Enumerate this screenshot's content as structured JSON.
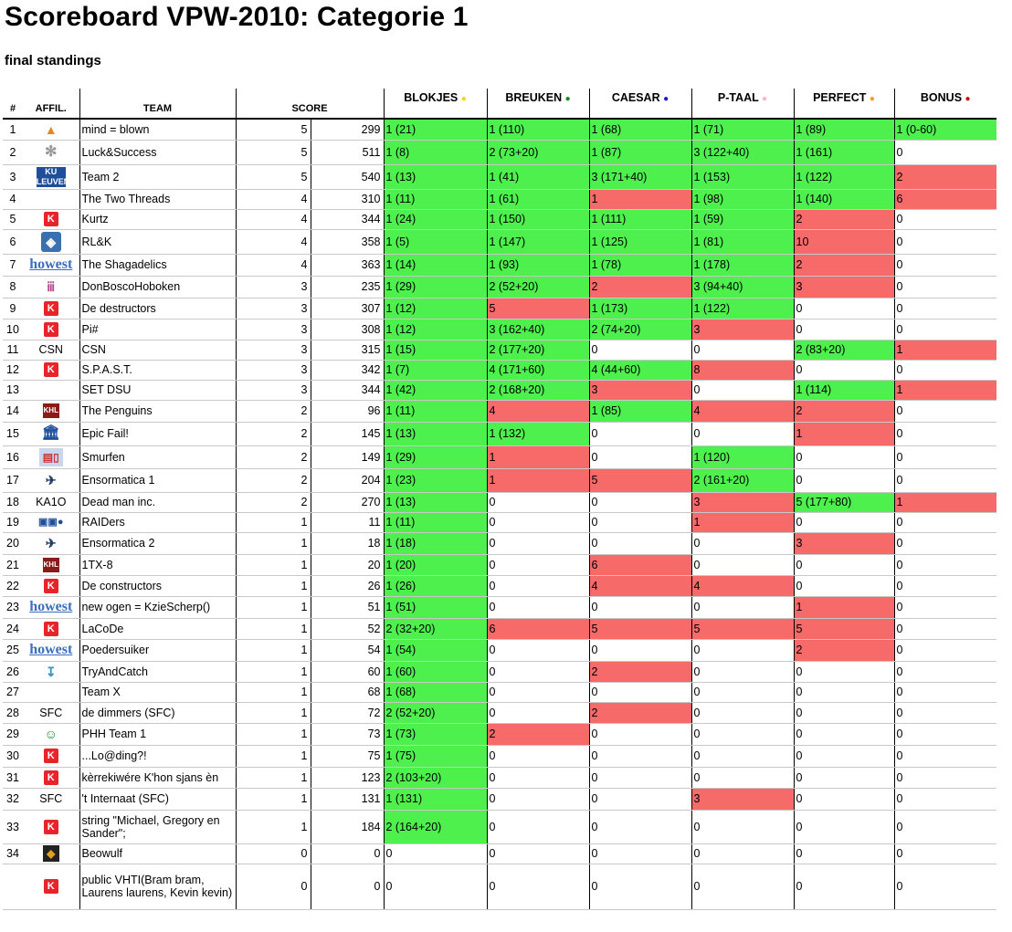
{
  "title": "Scoreboard VPW-2010: Categorie 1",
  "subtitle": "final standings",
  "headers": {
    "num": "#",
    "affil": "AFFIL.",
    "team": "TEAM",
    "score": "SCORE"
  },
  "problems": [
    {
      "label": "BLOKJES",
      "dot": "●",
      "dotColor": "#f0d800"
    },
    {
      "label": "BREUKEN",
      "dot": "●",
      "dotColor": "#1a8a1a"
    },
    {
      "label": "CAESAR",
      "dot": "●",
      "dotColor": "#1a1ad0"
    },
    {
      "label": "P-TAAL",
      "dot": "●",
      "dotColor": "#f4b8c8"
    },
    {
      "label": "PERFECT",
      "dot": "●",
      "dotColor": "#f0a020"
    },
    {
      "label": "BONUS",
      "dot": "●",
      "dotColor": "#d01010"
    }
  ],
  "colors": {
    "solved": "#4df04d",
    "failed": "#f66a6a"
  },
  "rows": [
    {
      "rank": "1",
      "affil_icon": "hat-icon",
      "affil": "",
      "team": "mind = blown",
      "solved": "5",
      "time": "299",
      "cells": [
        [
          "1 (21)",
          "g"
        ],
        [
          "1 (110)",
          "g"
        ],
        [
          "1 (68)",
          "g"
        ],
        [
          "1 (71)",
          "g"
        ],
        [
          "1 (89)",
          "g"
        ],
        [
          "1 (0-60)",
          "g"
        ]
      ]
    },
    {
      "rank": "2",
      "affil_icon": "gear-icon",
      "affil": "",
      "team": "Luck&Success",
      "solved": "5",
      "time": "511",
      "cells": [
        [
          "1 (8)",
          "g"
        ],
        [
          "2 (73+20)",
          "g"
        ],
        [
          "1 (87)",
          "g"
        ],
        [
          "3 (122+40)",
          "g"
        ],
        [
          "1 (161)",
          "g"
        ],
        [
          "0",
          ""
        ]
      ]
    },
    {
      "rank": "3",
      "affil_icon": "kuleuven-icon",
      "affil": "",
      "team": "Team 2",
      "solved": "5",
      "time": "540",
      "cells": [
        [
          "1 (13)",
          "g"
        ],
        [
          "1 (41)",
          "g"
        ],
        [
          "3 (171+40)",
          "g"
        ],
        [
          "1 (153)",
          "g"
        ],
        [
          "1 (122)",
          "g"
        ],
        [
          "2",
          "r"
        ]
      ]
    },
    {
      "rank": "4",
      "affil_icon": "",
      "affil": "",
      "team": "The Two Threads",
      "solved": "4",
      "time": "310",
      "cells": [
        [
          "1 (11)",
          "g"
        ],
        [
          "1 (61)",
          "g"
        ],
        [
          "1",
          "r"
        ],
        [
          "1 (98)",
          "g"
        ],
        [
          "1 (140)",
          "g"
        ],
        [
          "6",
          "r"
        ]
      ]
    },
    {
      "rank": "5",
      "affil_icon": "k-icon",
      "affil": "",
      "team": "Kurtz",
      "solved": "4",
      "time": "344",
      "cells": [
        [
          "1 (24)",
          "g"
        ],
        [
          "1 (150)",
          "g"
        ],
        [
          "1 (111)",
          "g"
        ],
        [
          "1 (59)",
          "g"
        ],
        [
          "2",
          "r"
        ],
        [
          "0",
          ""
        ]
      ]
    },
    {
      "rank": "6",
      "affil_icon": "hexa-icon",
      "affil": "",
      "team": "RL&K",
      "solved": "4",
      "time": "358",
      "cells": [
        [
          "1 (5)",
          "g"
        ],
        [
          "1 (147)",
          "g"
        ],
        [
          "1 (125)",
          "g"
        ],
        [
          "1 (81)",
          "g"
        ],
        [
          "10",
          "r"
        ],
        [
          "0",
          ""
        ]
      ]
    },
    {
      "rank": "7",
      "affil_icon": "howest-icon",
      "affil": "",
      "team": "The Shagadelics",
      "solved": "4",
      "time": "363",
      "cells": [
        [
          "1 (14)",
          "g"
        ],
        [
          "1 (93)",
          "g"
        ],
        [
          "1 (78)",
          "g"
        ],
        [
          "1 (178)",
          "g"
        ],
        [
          "2",
          "r"
        ],
        [
          "0",
          ""
        ]
      ]
    },
    {
      "rank": "8",
      "affil_icon": "donbosco-icon",
      "affil": "",
      "team": "DonBoscoHoboken",
      "solved": "3",
      "time": "235",
      "cells": [
        [
          "1 (29)",
          "g"
        ],
        [
          "2 (52+20)",
          "g"
        ],
        [
          "2",
          "r"
        ],
        [
          "3 (94+40)",
          "g"
        ],
        [
          "3",
          "r"
        ],
        [
          "0",
          ""
        ]
      ]
    },
    {
      "rank": "9",
      "affil_icon": "k-icon",
      "affil": "",
      "team": "De destructors",
      "solved": "3",
      "time": "307",
      "cells": [
        [
          "1 (12)",
          "g"
        ],
        [
          "5",
          "r"
        ],
        [
          "1 (173)",
          "g"
        ],
        [
          "1 (122)",
          "g"
        ],
        [
          "0",
          ""
        ],
        [
          "0",
          ""
        ]
      ]
    },
    {
      "rank": "10",
      "affil_icon": "k-icon",
      "affil": "",
      "team": "Pi#",
      "solved": "3",
      "time": "308",
      "cells": [
        [
          "1 (12)",
          "g"
        ],
        [
          "3 (162+40)",
          "g"
        ],
        [
          "2 (74+20)",
          "g"
        ],
        [
          "3",
          "r"
        ],
        [
          "0",
          ""
        ],
        [
          "0",
          ""
        ]
      ]
    },
    {
      "rank": "11",
      "affil_icon": "",
      "affil": "CSN",
      "team": "CSN",
      "solved": "3",
      "time": "315",
      "cells": [
        [
          "1 (15)",
          "g"
        ],
        [
          "2 (177+20)",
          "g"
        ],
        [
          "0",
          ""
        ],
        [
          "0",
          ""
        ],
        [
          "2 (83+20)",
          "g"
        ],
        [
          "1",
          "r"
        ]
      ]
    },
    {
      "rank": "12",
      "affil_icon": "k-icon",
      "affil": "",
      "team": "S.P.A.S.T.",
      "solved": "3",
      "time": "342",
      "cells": [
        [
          "1 (7)",
          "g"
        ],
        [
          "4 (171+60)",
          "g"
        ],
        [
          "4 (44+60)",
          "g"
        ],
        [
          "8",
          "r"
        ],
        [
          "0",
          ""
        ],
        [
          "0",
          ""
        ]
      ]
    },
    {
      "rank": "13",
      "affil_icon": "",
      "affil": "",
      "team": "SET DSU",
      "solved": "3",
      "time": "344",
      "cells": [
        [
          "1 (42)",
          "g"
        ],
        [
          "2 (168+20)",
          "g"
        ],
        [
          "3",
          "r"
        ],
        [
          "0",
          ""
        ],
        [
          "1 (114)",
          "g"
        ],
        [
          "1",
          "r"
        ]
      ]
    },
    {
      "rank": "14",
      "affil_icon": "khl-icon",
      "affil": "",
      "team": "The Penguins",
      "solved": "2",
      "time": "96",
      "cells": [
        [
          "1 (11)",
          "g"
        ],
        [
          "4",
          "r"
        ],
        [
          "1 (85)",
          "g"
        ],
        [
          "4",
          "r"
        ],
        [
          "2",
          "r"
        ],
        [
          "0",
          ""
        ]
      ]
    },
    {
      "rank": "15",
      "affil_icon": "bank-icon",
      "affil": "",
      "team": "Epic Fail!",
      "solved": "2",
      "time": "145",
      "cells": [
        [
          "1 (13)",
          "g"
        ],
        [
          "1 (132)",
          "g"
        ],
        [
          "0",
          ""
        ],
        [
          "0",
          ""
        ],
        [
          "1",
          "r"
        ],
        [
          "0",
          ""
        ]
      ]
    },
    {
      "rank": "16",
      "affil_icon": "smurf-icon",
      "affil": "",
      "team": "Smurfen",
      "solved": "2",
      "time": "149",
      "cells": [
        [
          "1 (29)",
          "g"
        ],
        [
          "1",
          "r"
        ],
        [
          "0",
          ""
        ],
        [
          "1 (120)",
          "g"
        ],
        [
          "0",
          ""
        ],
        [
          "0",
          ""
        ]
      ]
    },
    {
      "rank": "17",
      "affil_icon": "enso-icon",
      "affil": "",
      "team": "Ensormatica 1",
      "solved": "2",
      "time": "204",
      "cells": [
        [
          "1 (23)",
          "g"
        ],
        [
          "1",
          "r"
        ],
        [
          "5",
          "r"
        ],
        [
          "2 (161+20)",
          "g"
        ],
        [
          "0",
          ""
        ],
        [
          "0",
          ""
        ]
      ]
    },
    {
      "rank": "18",
      "affil_icon": "",
      "affil": "KA1O",
      "team": "Dead man inc.",
      "solved": "2",
      "time": "270",
      "cells": [
        [
          "1 (13)",
          "g"
        ],
        [
          "0",
          ""
        ],
        [
          "0",
          ""
        ],
        [
          "3",
          "r"
        ],
        [
          "5 (177+80)",
          "g"
        ],
        [
          "1",
          "r"
        ]
      ]
    },
    {
      "rank": "19",
      "affil_icon": "raid-icon",
      "affil": "",
      "team": "RAIDers",
      "solved": "1",
      "time": "11",
      "cells": [
        [
          "1 (11)",
          "g"
        ],
        [
          "0",
          ""
        ],
        [
          "0",
          ""
        ],
        [
          "1",
          "r"
        ],
        [
          "0",
          ""
        ],
        [
          "0",
          ""
        ]
      ]
    },
    {
      "rank": "20",
      "affil_icon": "enso-icon",
      "affil": "",
      "team": "Ensormatica 2",
      "solved": "1",
      "time": "18",
      "cells": [
        [
          "1 (18)",
          "g"
        ],
        [
          "0",
          ""
        ],
        [
          "0",
          ""
        ],
        [
          "0",
          ""
        ],
        [
          "3",
          "r"
        ],
        [
          "0",
          ""
        ]
      ]
    },
    {
      "rank": "21",
      "affil_icon": "khl-icon",
      "affil": "",
      "team": "1TX-8",
      "solved": "1",
      "time": "20",
      "cells": [
        [
          "1 (20)",
          "g"
        ],
        [
          "0",
          ""
        ],
        [
          "6",
          "r"
        ],
        [
          "0",
          ""
        ],
        [
          "0",
          ""
        ],
        [
          "0",
          ""
        ]
      ]
    },
    {
      "rank": "22",
      "affil_icon": "k-icon",
      "affil": "",
      "team": "De constructors",
      "solved": "1",
      "time": "26",
      "cells": [
        [
          "1 (26)",
          "g"
        ],
        [
          "0",
          ""
        ],
        [
          "4",
          "r"
        ],
        [
          "4",
          "r"
        ],
        [
          "0",
          ""
        ],
        [
          "0",
          ""
        ]
      ]
    },
    {
      "rank": "23",
      "affil_icon": "howest-icon",
      "affil": "",
      "team": "new ogen = KzieScherp()",
      "solved": "1",
      "time": "51",
      "cells": [
        [
          "1 (51)",
          "g"
        ],
        [
          "0",
          ""
        ],
        [
          "0",
          ""
        ],
        [
          "0",
          ""
        ],
        [
          "1",
          "r"
        ],
        [
          "0",
          ""
        ]
      ]
    },
    {
      "rank": "24",
      "affil_icon": "k-icon",
      "affil": "",
      "team": "LaCoDe",
      "solved": "1",
      "time": "52",
      "cells": [
        [
          "2 (32+20)",
          "g"
        ],
        [
          "6",
          "r"
        ],
        [
          "5",
          "r"
        ],
        [
          "5",
          "r"
        ],
        [
          "5",
          "r"
        ],
        [
          "0",
          ""
        ]
      ]
    },
    {
      "rank": "25",
      "affil_icon": "howest-icon",
      "affil": "",
      "team": "Poedersuiker",
      "solved": "1",
      "time": "54",
      "cells": [
        [
          "1 (54)",
          "g"
        ],
        [
          "0",
          ""
        ],
        [
          "0",
          ""
        ],
        [
          "0",
          ""
        ],
        [
          "2",
          "r"
        ],
        [
          "0",
          ""
        ]
      ]
    },
    {
      "rank": "26",
      "affil_icon": "catch-icon",
      "affil": "",
      "team": "TryAndCatch",
      "solved": "1",
      "time": "60",
      "cells": [
        [
          "1 (60)",
          "g"
        ],
        [
          "0",
          ""
        ],
        [
          "2",
          "r"
        ],
        [
          "0",
          ""
        ],
        [
          "0",
          ""
        ],
        [
          "0",
          ""
        ]
      ]
    },
    {
      "rank": "27",
      "affil_icon": "",
      "affil": "",
      "team": "Team X",
      "solved": "1",
      "time": "68",
      "cells": [
        [
          "1 (68)",
          "g"
        ],
        [
          "0",
          ""
        ],
        [
          "0",
          ""
        ],
        [
          "0",
          ""
        ],
        [
          "0",
          ""
        ],
        [
          "0",
          ""
        ]
      ]
    },
    {
      "rank": "28",
      "affil_icon": "",
      "affil": "SFC",
      "team": "de dimmers (SFC)",
      "solved": "1",
      "time": "72",
      "cells": [
        [
          "2 (52+20)",
          "g"
        ],
        [
          "0",
          ""
        ],
        [
          "2",
          "r"
        ],
        [
          "0",
          ""
        ],
        [
          "0",
          ""
        ],
        [
          "0",
          ""
        ]
      ]
    },
    {
      "rank": "29",
      "affil_icon": "phh-icon",
      "affil": "",
      "team": "PHH Team 1",
      "solved": "1",
      "time": "73",
      "cells": [
        [
          "1 (73)",
          "g"
        ],
        [
          "2",
          "r"
        ],
        [
          "0",
          ""
        ],
        [
          "0",
          ""
        ],
        [
          "0",
          ""
        ],
        [
          "0",
          ""
        ]
      ]
    },
    {
      "rank": "30",
      "affil_icon": "k-icon",
      "affil": "",
      "team": "...Lo@ding?!",
      "solved": "1",
      "time": "75",
      "cells": [
        [
          "1 (75)",
          "g"
        ],
        [
          "0",
          ""
        ],
        [
          "0",
          ""
        ],
        [
          "0",
          ""
        ],
        [
          "0",
          ""
        ],
        [
          "0",
          ""
        ]
      ]
    },
    {
      "rank": "31",
      "affil_icon": "k-icon",
      "affil": "",
      "team": "kèrrekiwére K'hon sjans èn",
      "solved": "1",
      "time": "123",
      "cells": [
        [
          "2 (103+20)",
          "g"
        ],
        [
          "0",
          ""
        ],
        [
          "0",
          ""
        ],
        [
          "0",
          ""
        ],
        [
          "0",
          ""
        ],
        [
          "0",
          ""
        ]
      ]
    },
    {
      "rank": "32",
      "affil_icon": "",
      "affil": "SFC",
      "team": "'t Internaat (SFC)",
      "solved": "1",
      "time": "131",
      "cells": [
        [
          "1 (131)",
          "g"
        ],
        [
          "0",
          ""
        ],
        [
          "0",
          ""
        ],
        [
          "3",
          "r"
        ],
        [
          "0",
          ""
        ],
        [
          "0",
          ""
        ]
      ]
    },
    {
      "rank": "33",
      "affil_icon": "k-icon",
      "affil": "",
      "team": "string \"Michael, Gregory en Sander\";",
      "solved": "1",
      "time": "184",
      "cells": [
        [
          "2 (164+20)",
          "g"
        ],
        [
          "0",
          ""
        ],
        [
          "0",
          ""
        ],
        [
          "0",
          ""
        ],
        [
          "0",
          ""
        ],
        [
          "0",
          ""
        ]
      ]
    },
    {
      "rank": "34",
      "affil_icon": "beowulf-icon",
      "affil": "",
      "team": "Beowulf",
      "solved": "0",
      "time": "0",
      "cells": [
        [
          "0",
          ""
        ],
        [
          "0",
          ""
        ],
        [
          "0",
          ""
        ],
        [
          "0",
          ""
        ],
        [
          "0",
          ""
        ],
        [
          "0",
          ""
        ]
      ]
    },
    {
      "rank": "",
      "affil_icon": "k-icon",
      "affil": "",
      "team": "public VHTI(Bram bram, Laurens laurens, Kevin kevin)",
      "solved": "0",
      "time": "0",
      "cells": [
        [
          "0",
          ""
        ],
        [
          "0",
          ""
        ],
        [
          "0",
          ""
        ],
        [
          "0",
          ""
        ],
        [
          "0",
          ""
        ],
        [
          "0",
          ""
        ]
      ]
    }
  ]
}
